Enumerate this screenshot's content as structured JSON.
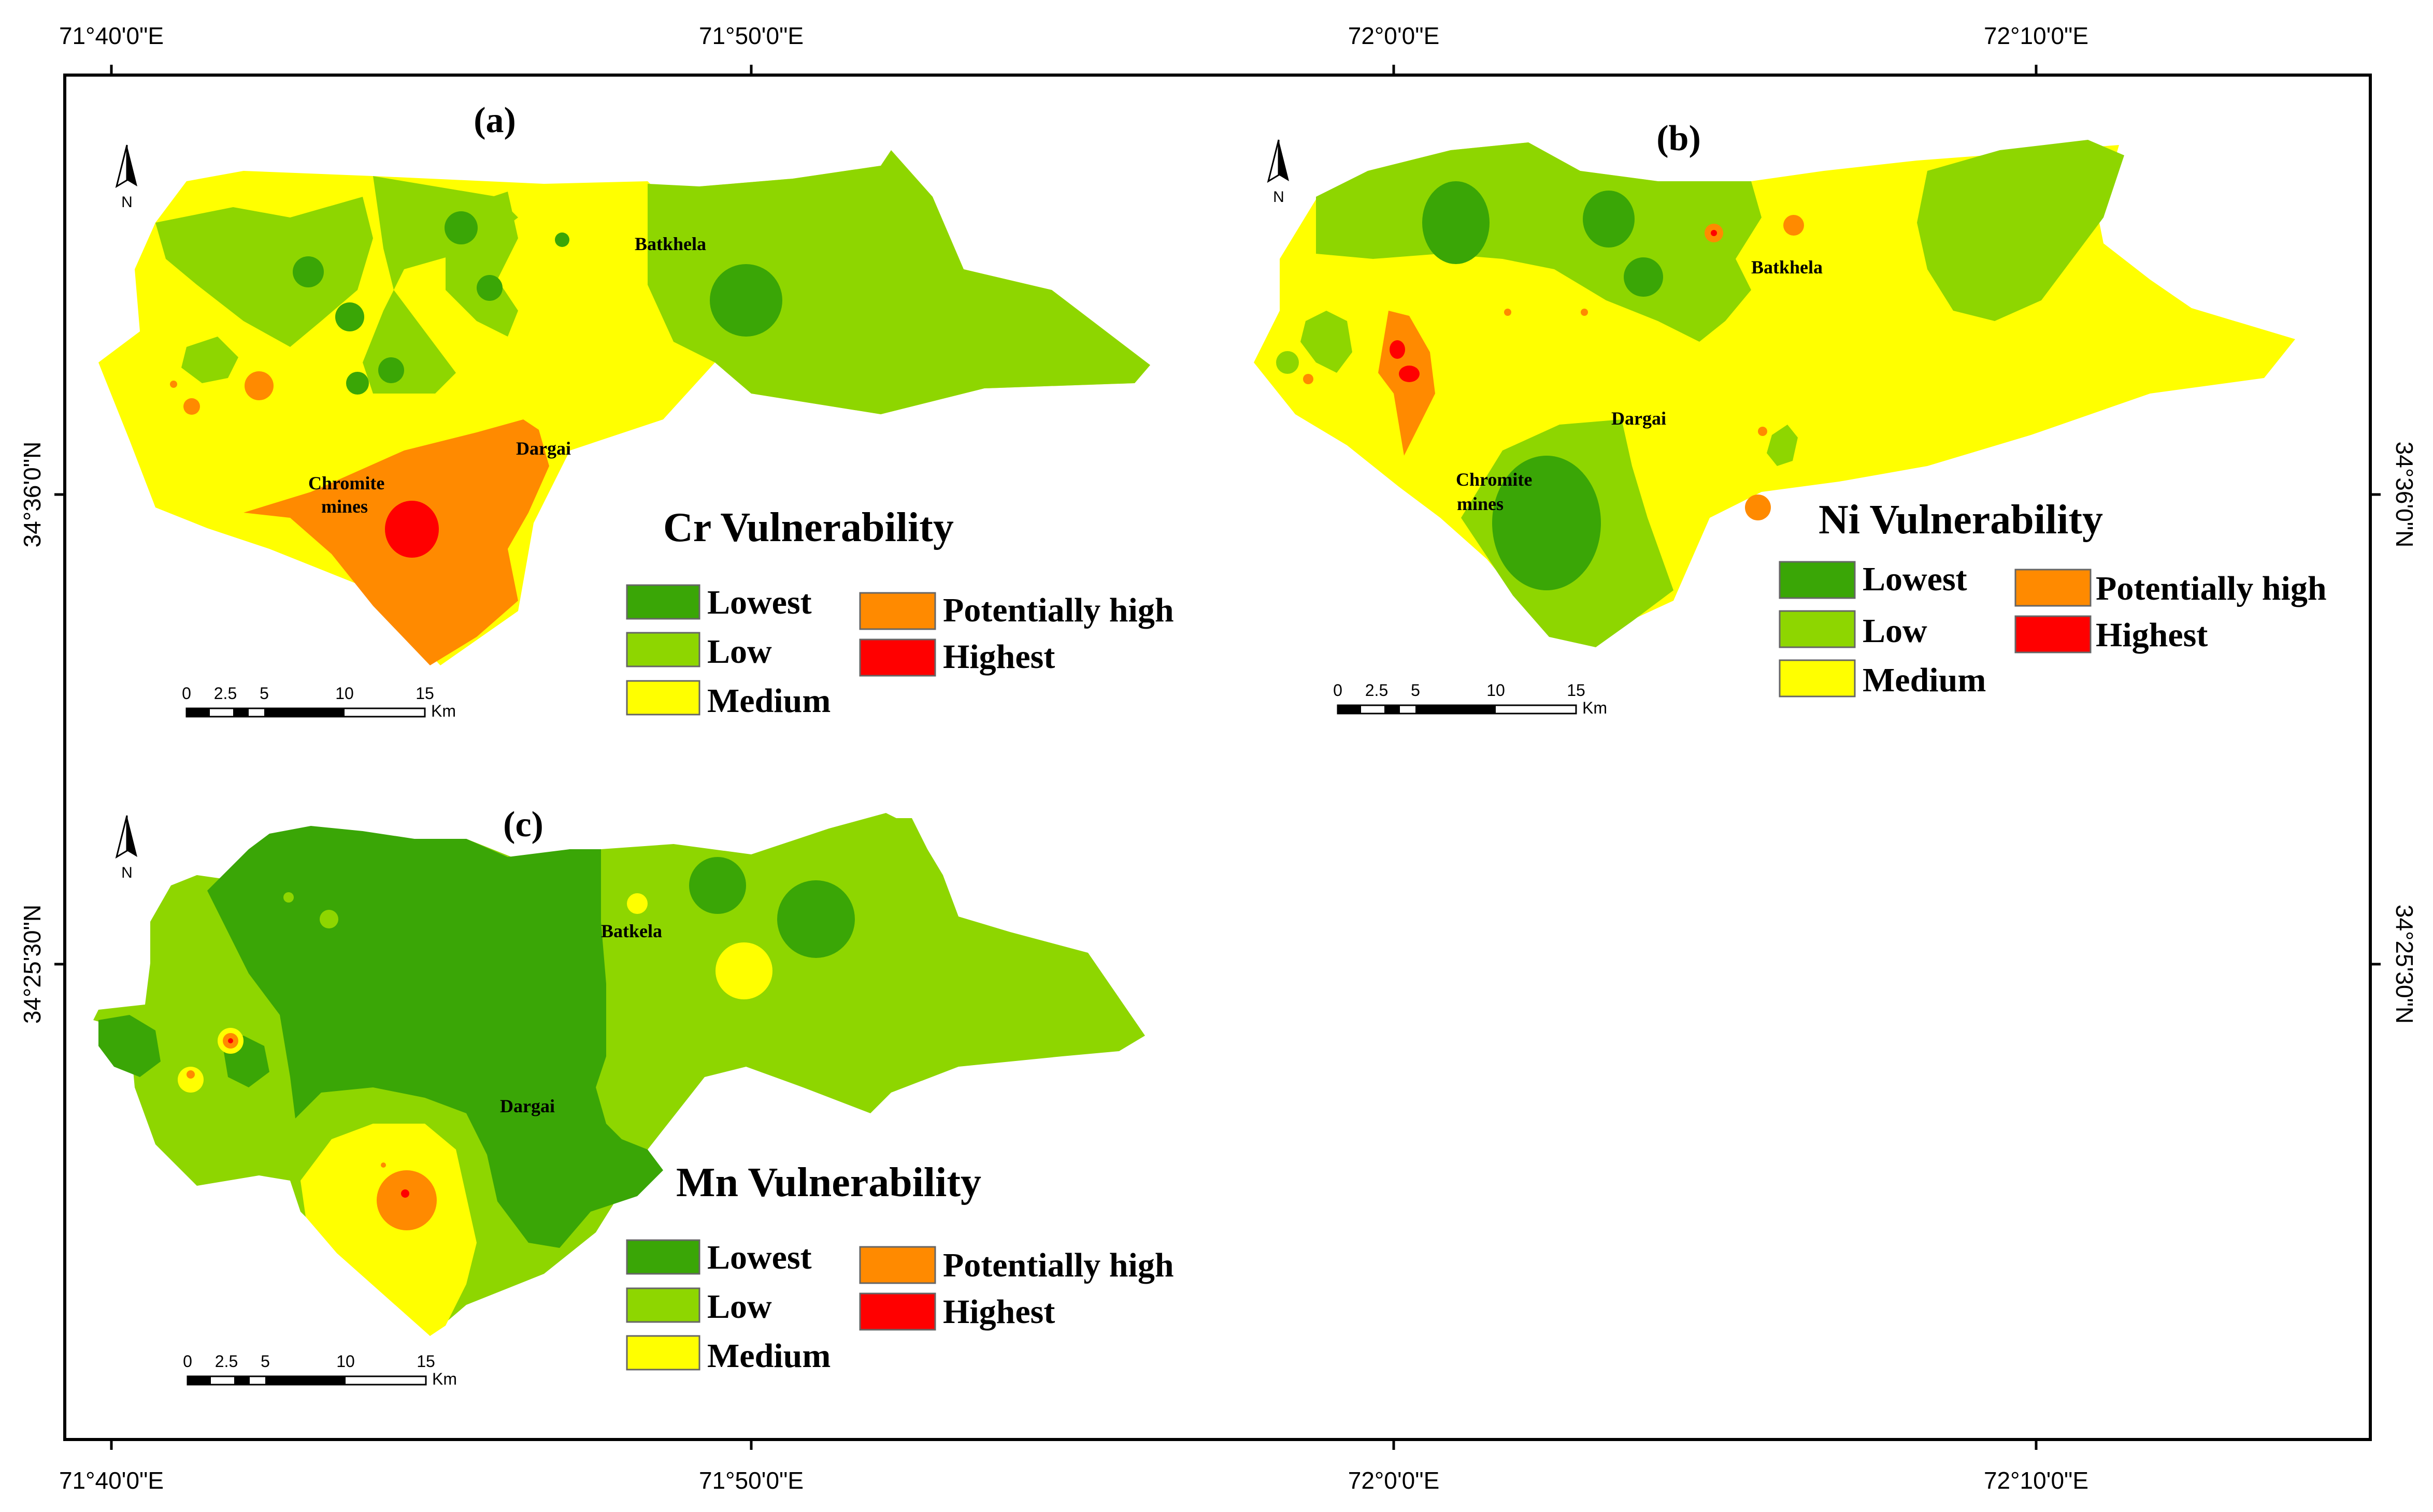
{
  "axes": {
    "top_ticks": [
      "71°40'0\"E",
      "71°50'0\"E",
      "72°0'0\"E",
      "72°10'0\"E"
    ],
    "bottom_ticks": [
      "71°40'0\"E",
      "71°50'0\"E",
      "72°0'0\"E",
      "72°10'0\"E"
    ],
    "left_ticks": [
      "34°36'0\"N",
      "34°25'30\"N"
    ],
    "right_ticks": [
      "34°36'0\"N",
      "34°25'30\"N"
    ]
  },
  "colors": {
    "lowest": "#3aa606",
    "low": "#8ed600",
    "medium": "#ffff00",
    "potentially_high": "#ff8a00",
    "highest": "#ff0000",
    "frame": "#000000"
  },
  "panels": [
    {
      "id": "a",
      "label": "(a)",
      "title": "Cr Vulnerability",
      "places": [
        "Batkhela",
        "Dargai",
        "Chromite",
        "mines"
      ]
    },
    {
      "id": "b",
      "label": "(b)",
      "title": "Ni Vulnerability",
      "places": [
        "Batkhela",
        "Dargai",
        "Chromite",
        "mines"
      ]
    },
    {
      "id": "c",
      "label": "(c)",
      "title": "Mn Vulnerability",
      "places": [
        "Batkela",
        "Dargai"
      ]
    }
  ],
  "legend": {
    "lowest": "Lowest",
    "low": "Low",
    "medium": "Medium",
    "potentially_high": "Potentially high",
    "highest": "Highest"
  },
  "scale_bar": {
    "ticks": [
      "0",
      "2.5",
      "5",
      "10",
      "15"
    ],
    "unit": "Km"
  },
  "north_arrow": "N"
}
